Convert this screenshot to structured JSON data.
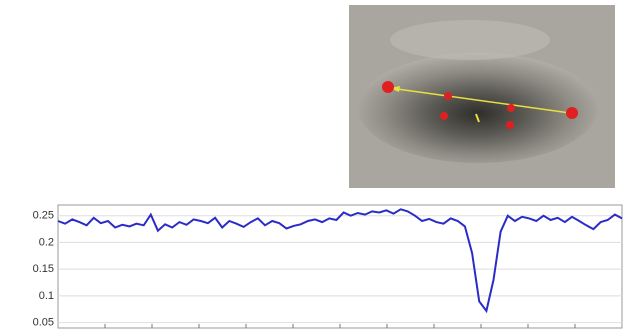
{
  "chart_data": {
    "type": "line",
    "x": [
      0,
      1,
      2,
      3,
      4,
      5,
      6,
      7,
      8,
      9,
      10,
      11,
      12,
      13,
      14,
      15,
      16,
      17,
      18,
      19,
      20,
      21,
      22,
      23,
      24,
      25,
      26,
      27,
      28,
      29,
      30,
      31,
      32,
      33,
      34,
      35,
      36,
      37,
      38,
      39,
      40,
      41,
      42,
      43,
      44,
      45,
      46,
      47,
      48,
      49,
      50,
      51,
      52,
      53,
      54,
      55,
      56,
      57,
      58,
      59,
      60,
      61,
      62,
      63,
      64,
      65,
      66,
      67,
      68,
      69,
      70,
      71,
      72,
      73,
      74,
      75,
      76,
      77,
      78,
      79
    ],
    "xlim": [
      0,
      79
    ],
    "series": [
      {
        "color": "#2b2bc8",
        "values": [
          0.24,
          0.235,
          0.243,
          0.238,
          0.232,
          0.246,
          0.236,
          0.24,
          0.228,
          0.233,
          0.23,
          0.235,
          0.232,
          0.252,
          0.222,
          0.234,
          0.228,
          0.238,
          0.233,
          0.243,
          0.24,
          0.236,
          0.246,
          0.228,
          0.24,
          0.235,
          0.229,
          0.238,
          0.245,
          0.232,
          0.24,
          0.236,
          0.226,
          0.231,
          0.234,
          0.24,
          0.243,
          0.238,
          0.245,
          0.242,
          0.256,
          0.25,
          0.255,
          0.252,
          0.258,
          0.256,
          0.26,
          0.254,
          0.262,
          0.258,
          0.25,
          0.24,
          0.244,
          0.238,
          0.235,
          0.245,
          0.24,
          0.23,
          0.18,
          0.09,
          0.072,
          0.13,
          0.22,
          0.25,
          0.24,
          0.248,
          0.245,
          0.24,
          0.25,
          0.242,
          0.246,
          0.238,
          0.248,
          0.24,
          0.232,
          0.225,
          0.238,
          0.242,
          0.252,
          0.245
        ]
      }
    ],
    "ylim": [
      0.04,
      0.27
    ],
    "yticks": [
      0.05,
      0.1,
      0.15,
      0.2,
      0.25
    ],
    "grid": true
  }
}
